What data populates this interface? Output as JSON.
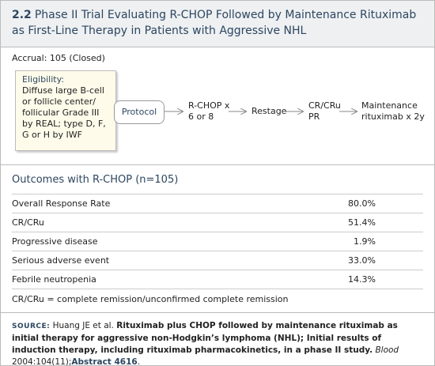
{
  "header": {
    "number": "2.2",
    "title": "Phase II Trial Evaluating R-CHOP Followed by Maintenance Rituximab as First-Line Therapy in Patients with Aggressive NHL"
  },
  "accrual": "Accrual: 105 (Closed)",
  "eligibility": {
    "label": "Eligibility:",
    "lines": [
      "Diffuse large B-cell",
      "or follicle center/",
      "follicular Grade III",
      "by REAL; type D, F,",
      "G or H by IWF"
    ]
  },
  "flow": [
    {
      "lines": [
        "Protocol"
      ]
    },
    {
      "lines": [
        "R-CHOP x",
        "6 or 8"
      ]
    },
    {
      "lines": [
        "Restage"
      ]
    },
    {
      "lines": [
        "CR/CRu",
        "PR"
      ]
    },
    {
      "lines": [
        "Maintenance",
        "rituximab x 2y"
      ]
    }
  ],
  "outcomes": {
    "title": "Outcomes with R-CHOP (n=105)",
    "rows": [
      [
        "Overall Response Rate",
        "80.0%"
      ],
      [
        "CR/CRu",
        "51.4%"
      ],
      [
        "Progressive disease",
        "1.9%"
      ],
      [
        "Serious adverse event",
        "33.0%"
      ],
      [
        "Febrile neutropenia",
        "14.3%"
      ]
    ]
  },
  "footnote": "CR/CRu = complete remission/unconfirmed complete remission",
  "source": {
    "label": "SOURCE:",
    "author": "Huang JE et al.",
    "title": "Rituximab plus CHOP followed by maintenance rituximab as initial therapy for aggressive non-Hodgkin’s lymphoma (NHL); Initial results of induction therapy, including rituximab pharmacokinetics, in a phase II study.",
    "journal": "Blood",
    "citation": "2004:104(11);",
    "link": "Abstract 4616",
    "end": "."
  }
}
